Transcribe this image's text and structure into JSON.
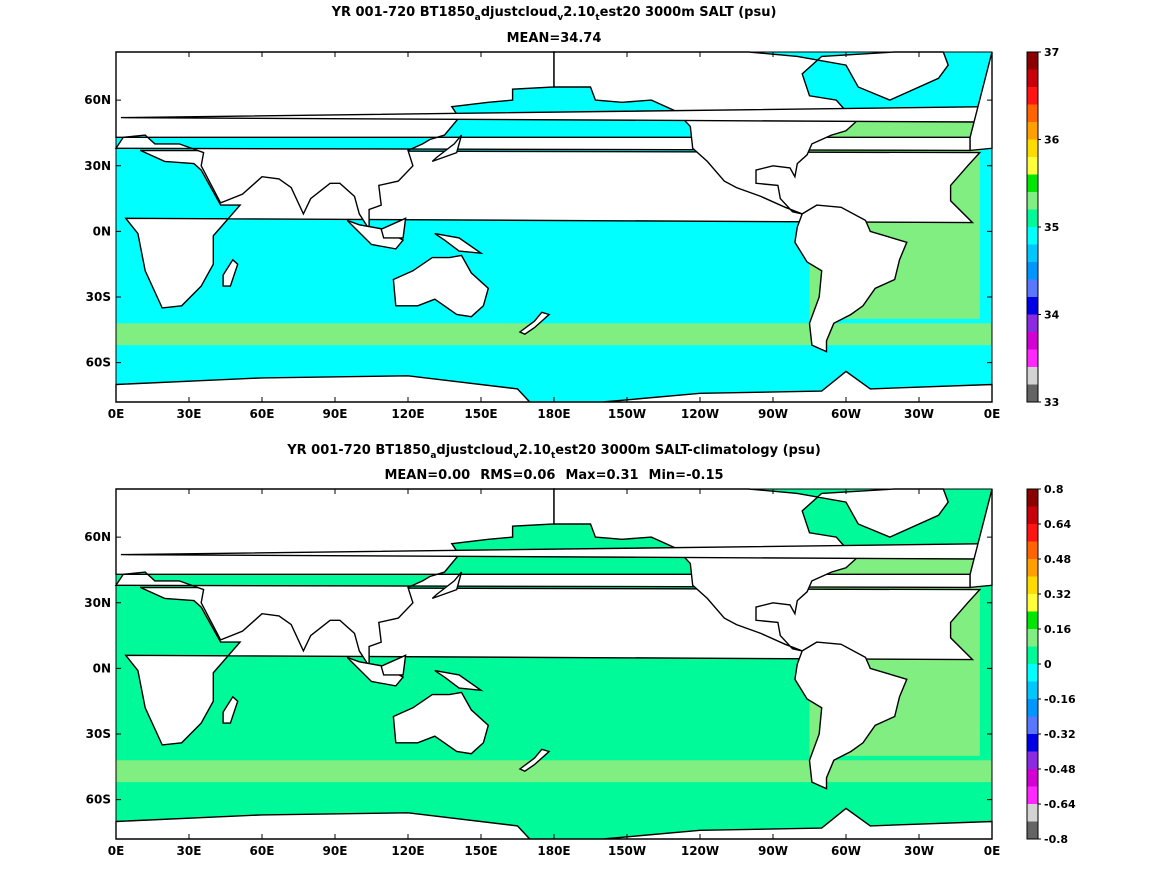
{
  "panels": [
    {
      "title_parts": [
        {
          "t": "YR 001-720 BT1850"
        },
        {
          "s": "a"
        },
        {
          "t": "djustcloud"
        },
        {
          "s": "v"
        },
        {
          "t": "2.10"
        },
        {
          "s": "t"
        },
        {
          "t": "est20 3000m SALT (psu)"
        }
      ],
      "stats": [
        "MEAN=34.74"
      ],
      "x_ticks": [
        "0E",
        "30E",
        "60E",
        "90E",
        "120E",
        "150E",
        "180E",
        "150W",
        "120W",
        "90W",
        "60W",
        "30W",
        "0E"
      ],
      "y_ticks": [
        "60N",
        "30N",
        "0N",
        "30S",
        "60S"
      ],
      "colorbar": {
        "labels": [
          "37",
          "36",
          "35",
          "34",
          "33"
        ],
        "colors": [
          "#8b0000",
          "#c8000a",
          "#ff1414",
          "#ff6400",
          "#ffa000",
          "#ffdc00",
          "#ffff3c",
          "#00e600",
          "#80ee80",
          "#00fa9a",
          "#00ffff",
          "#00c8ff",
          "#0096ff",
          "#5a78ff",
          "#0000e6",
          "#8a2be2",
          "#d200d2",
          "#ff28ff",
          "#d3d3d3",
          "#646464"
        ]
      },
      "fill_color": "#00ffff",
      "fill_secondary": "#80ee80"
    },
    {
      "title_parts": [
        {
          "t": "YR 001-720 BT1850"
        },
        {
          "s": "a"
        },
        {
          "t": "djustcloud"
        },
        {
          "s": "v"
        },
        {
          "t": "2.10"
        },
        {
          "s": "t"
        },
        {
          "t": "est20 3000m SALT-climatology (psu)"
        }
      ],
      "stats": [
        "MEAN=0.00",
        "RMS=0.06",
        "Max=0.31",
        "Min=-0.15"
      ],
      "x_ticks": [
        "0E",
        "30E",
        "60E",
        "90E",
        "120E",
        "150E",
        "180E",
        "150W",
        "120W",
        "90W",
        "60W",
        "30W",
        "0E"
      ],
      "y_ticks": [
        "60N",
        "30N",
        "0N",
        "30S",
        "60S"
      ],
      "colorbar": {
        "labels": [
          "0.8",
          "0.64",
          "0.48",
          "0.32",
          "0.16",
          "0",
          "-0.16",
          "-0.32",
          "-0.48",
          "-0.64",
          "-0.8"
        ],
        "colors": [
          "#8b0000",
          "#c8000a",
          "#ff1414",
          "#ff6400",
          "#ffa000",
          "#ffdc00",
          "#ffff3c",
          "#00e600",
          "#80ee80",
          "#00fa9a",
          "#00ffff",
          "#00c8ff",
          "#0096ff",
          "#5a78ff",
          "#0000e6",
          "#8a2be2",
          "#d200d2",
          "#ff28ff",
          "#d3d3d3",
          "#646464"
        ]
      },
      "fill_color": "#00fa9a",
      "fill_secondary": "#80ee80"
    }
  ]
}
